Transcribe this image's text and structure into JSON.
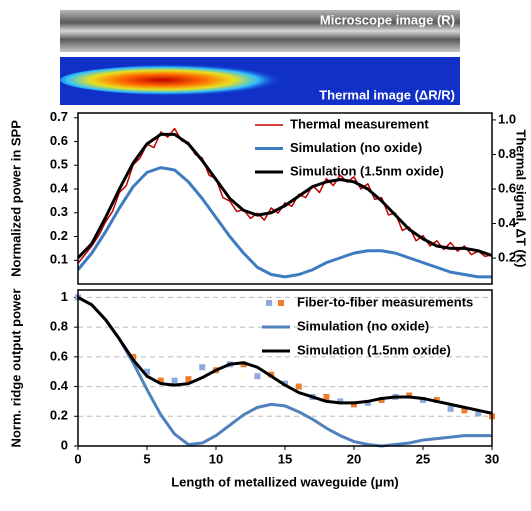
{
  "images": [
    {
      "label": "Microscope image (R)"
    },
    {
      "label": "Thermal image (ΔR/R)"
    }
  ],
  "chart_data": [
    {
      "type": "line",
      "ylabel": "Normalized power in SPP",
      "y2label": "Thermal signal, ΔT (K)",
      "xlim": [
        0,
        30
      ],
      "ylim": [
        0,
        0.72
      ],
      "yticks": [
        0.1,
        0.2,
        0.3,
        0.4,
        0.5,
        0.6,
        0.7
      ],
      "y2lim": [
        0.05,
        1.04
      ],
      "y2ticks": [
        0.2,
        0.4,
        0.6,
        0.8,
        {
          "value": 1,
          "label": "1.0"
        }
      ],
      "grid": false,
      "legend": "upper right",
      "series": [
        {
          "name": "Thermal measurement",
          "color": "#c00000",
          "axis": "y2",
          "style": "line",
          "width": 1.5,
          "x": [
            0,
            0.5,
            1,
            1.5,
            2,
            2.5,
            3,
            3.5,
            4,
            4.5,
            5,
            5.5,
            6,
            6.5,
            7,
            7.5,
            8,
            8.5,
            9,
            9.5,
            10,
            10.5,
            11,
            11.5,
            12,
            12.5,
            13,
            13.5,
            14,
            14.5,
            15,
            15.5,
            16,
            16.5,
            17,
            17.5,
            18,
            18.5,
            19,
            19.5,
            20,
            20.5,
            21,
            21.5,
            22,
            22.5,
            23,
            23.5,
            24,
            24.5,
            25,
            25.5,
            26,
            26.5,
            27,
            27.5,
            28,
            28.5,
            29,
            29.5,
            30
          ],
          "values": [
            0.17,
            0.22,
            0.27,
            0.33,
            0.41,
            0.47,
            0.58,
            0.62,
            0.74,
            0.78,
            0.86,
            0.84,
            0.93,
            0.9,
            0.95,
            0.88,
            0.87,
            0.8,
            0.78,
            0.68,
            0.66,
            0.55,
            0.53,
            0.47,
            0.48,
            0.43,
            0.46,
            0.42,
            0.49,
            0.46,
            0.52,
            0.5,
            0.57,
            0.55,
            0.62,
            0.58,
            0.66,
            0.62,
            0.68,
            0.64,
            0.67,
            0.6,
            0.63,
            0.54,
            0.55,
            0.45,
            0.46,
            0.36,
            0.38,
            0.3,
            0.33,
            0.27,
            0.3,
            0.25,
            0.29,
            0.24,
            0.27,
            0.22,
            0.24,
            0.21,
            0.22
          ]
        },
        {
          "name": "Simulation (no oxide)",
          "color": "#3e7cc2",
          "style": "line",
          "width": 3,
          "x": [
            0,
            1,
            2,
            3,
            4,
            5,
            6,
            7,
            8,
            9,
            10,
            11,
            12,
            13,
            14,
            15,
            16,
            17,
            18,
            19,
            20,
            21,
            22,
            23,
            24,
            25,
            26,
            27,
            28,
            29,
            30
          ],
          "values": [
            0.06,
            0.13,
            0.22,
            0.32,
            0.41,
            0.47,
            0.49,
            0.48,
            0.43,
            0.36,
            0.28,
            0.2,
            0.13,
            0.07,
            0.04,
            0.03,
            0.04,
            0.06,
            0.09,
            0.11,
            0.13,
            0.14,
            0.14,
            0.13,
            0.11,
            0.09,
            0.07,
            0.05,
            0.04,
            0.03,
            0.03
          ]
        },
        {
          "name": "Simulation (1.5nm oxide)",
          "color": "#000000",
          "style": "line",
          "width": 3,
          "x": [
            0,
            1,
            2,
            3,
            4,
            5,
            6,
            7,
            8,
            9,
            10,
            11,
            12,
            13,
            14,
            15,
            16,
            17,
            18,
            19,
            20,
            21,
            22,
            23,
            24,
            25,
            26,
            27,
            28,
            29,
            30
          ],
          "values": [
            0.11,
            0.17,
            0.28,
            0.4,
            0.51,
            0.59,
            0.63,
            0.63,
            0.59,
            0.52,
            0.44,
            0.36,
            0.31,
            0.29,
            0.3,
            0.33,
            0.37,
            0.41,
            0.43,
            0.44,
            0.43,
            0.4,
            0.35,
            0.29,
            0.23,
            0.19,
            0.16,
            0.15,
            0.15,
            0.14,
            0.12
          ]
        }
      ]
    },
    {
      "type": "line",
      "ylabel": "Norm. ridge output power",
      "xlabel": "Length of metallized waveguide (μm)",
      "xlim": [
        0,
        30
      ],
      "xticks": [
        0,
        5,
        10,
        15,
        20,
        25,
        30
      ],
      "ylim": [
        0,
        1.05
      ],
      "yticks": [
        0,
        0.2,
        0.4,
        0.6,
        0.8,
        1
      ],
      "grid": true,
      "legend": "upper right",
      "series": [
        {
          "name": "Fiber-to-fiber measurements",
          "colors": [
            "#8ea9db",
            "#ed7d31"
          ],
          "style": "markers",
          "x": [
            0,
            4,
            5,
            6,
            7,
            8,
            9,
            10,
            11,
            12,
            13,
            14,
            15,
            16,
            17,
            18,
            19,
            20,
            21,
            22,
            23,
            24,
            25,
            26,
            27,
            28,
            29,
            30
          ],
          "values": [
            1,
            0.6,
            0.5,
            0.44,
            0.44,
            0.45,
            0.53,
            0.51,
            0.55,
            0.55,
            0.47,
            0.48,
            0.42,
            0.4,
            0.33,
            0.33,
            0.3,
            0.28,
            0.29,
            0.31,
            0.33,
            0.34,
            0.31,
            0.31,
            0.25,
            0.24,
            0.22,
            0.2
          ]
        },
        {
          "name": "Simulation (no oxide)",
          "color": "#4f81bd",
          "style": "line",
          "width": 3,
          "x": [
            0,
            1,
            2,
            3,
            4,
            5,
            6,
            7,
            8,
            9,
            10,
            11,
            12,
            13,
            14,
            15,
            16,
            17,
            18,
            19,
            20,
            21,
            22,
            23,
            24,
            25,
            26,
            27,
            28,
            29,
            30
          ],
          "values": [
            1,
            0.95,
            0.85,
            0.72,
            0.56,
            0.38,
            0.21,
            0.08,
            0.01,
            0.02,
            0.07,
            0.14,
            0.21,
            0.26,
            0.28,
            0.27,
            0.23,
            0.18,
            0.12,
            0.07,
            0.03,
            0.01,
            0,
            0.01,
            0.02,
            0.04,
            0.05,
            0.06,
            0.07,
            0.07,
            0.07
          ]
        },
        {
          "name": "Simulation (1.5nm oxide)",
          "color": "#000000",
          "style": "line",
          "width": 3,
          "x": [
            0,
            1,
            2,
            3,
            4,
            5,
            6,
            7,
            8,
            9,
            10,
            11,
            12,
            13,
            14,
            15,
            16,
            17,
            18,
            19,
            20,
            21,
            22,
            23,
            24,
            25,
            26,
            27,
            28,
            29,
            30
          ],
          "values": [
            1,
            0.95,
            0.85,
            0.72,
            0.58,
            0.47,
            0.42,
            0.41,
            0.42,
            0.46,
            0.51,
            0.55,
            0.56,
            0.53,
            0.47,
            0.41,
            0.36,
            0.33,
            0.3,
            0.29,
            0.29,
            0.3,
            0.32,
            0.33,
            0.33,
            0.32,
            0.3,
            0.28,
            0.26,
            0.24,
            0.22
          ]
        }
      ]
    }
  ]
}
